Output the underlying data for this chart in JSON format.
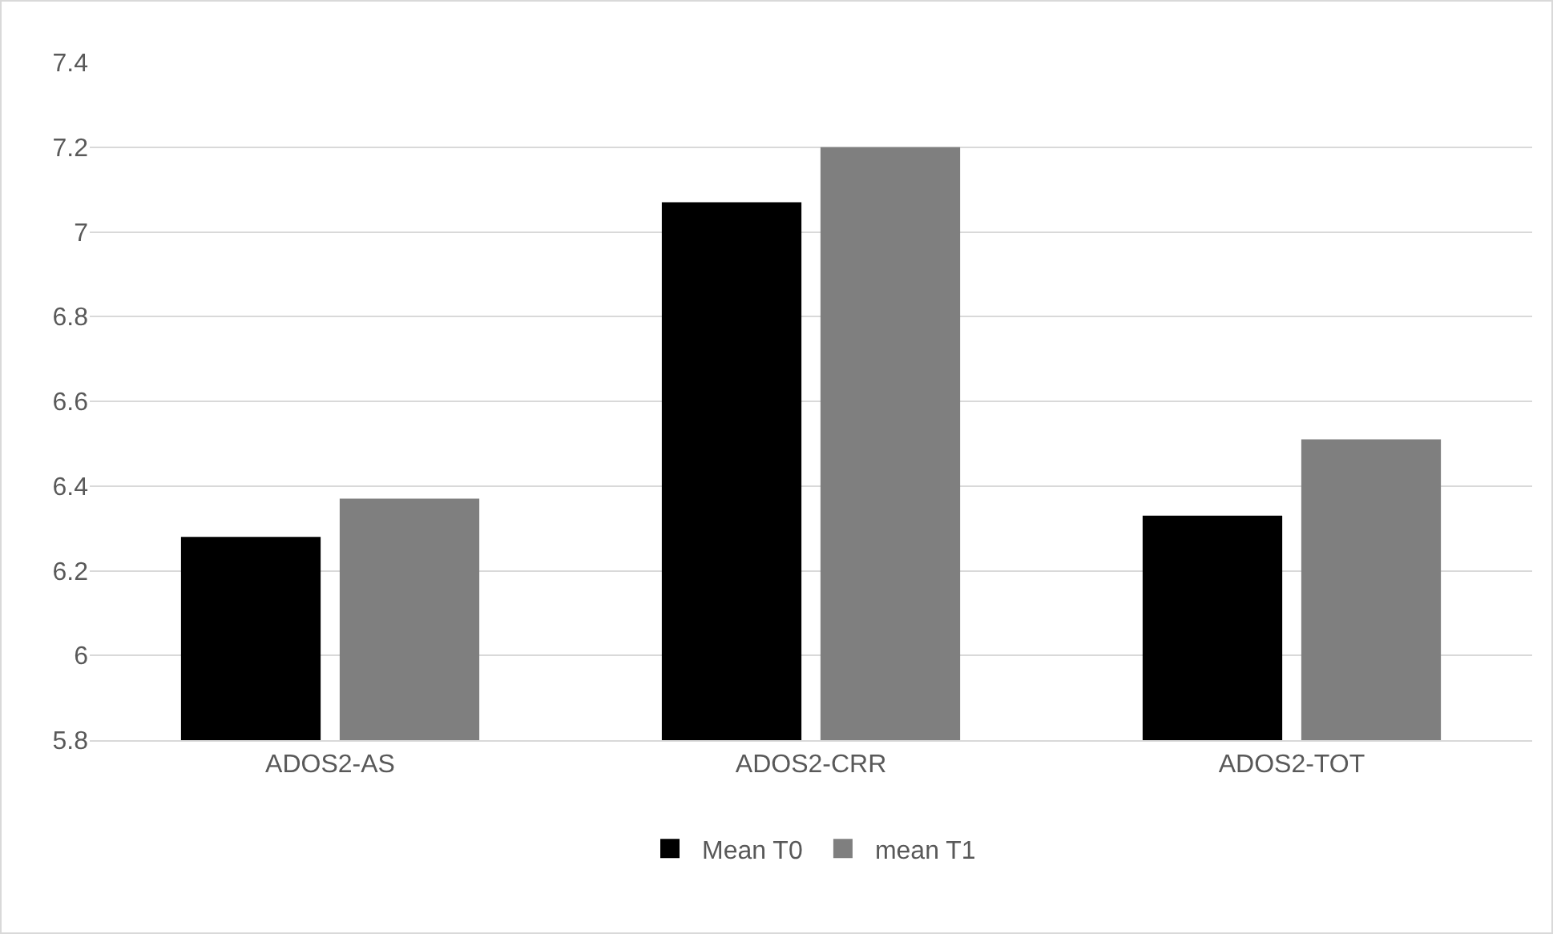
{
  "chart_data": {
    "type": "bar",
    "categories": [
      "ADOS2-AS",
      "ADOS2-CRR",
      "ADOS2-TOT"
    ],
    "series": [
      {
        "name": "Mean T0",
        "color": "#000000",
        "values": [
          6.28,
          7.07,
          6.33
        ]
      },
      {
        "name": "mean T1",
        "color": "#7f7f7f",
        "values": [
          6.37,
          7.2,
          6.51
        ]
      }
    ],
    "ylim": [
      5.8,
      7.4
    ],
    "yticks": [
      {
        "value": 5.8,
        "label": "5.8"
      },
      {
        "value": 6,
        "label": "6"
      },
      {
        "value": 6.2,
        "label": "6.2"
      },
      {
        "value": 6.4,
        "label": "6.4"
      },
      {
        "value": 6.6,
        "label": "6.6"
      },
      {
        "value": 6.8,
        "label": "6.8"
      },
      {
        "value": 7,
        "label": "7"
      },
      {
        "value": 7.2,
        "label": "7.2"
      },
      {
        "value": 7.4,
        "label": "7.4"
      }
    ],
    "grid": "y",
    "legend": "bottom"
  }
}
